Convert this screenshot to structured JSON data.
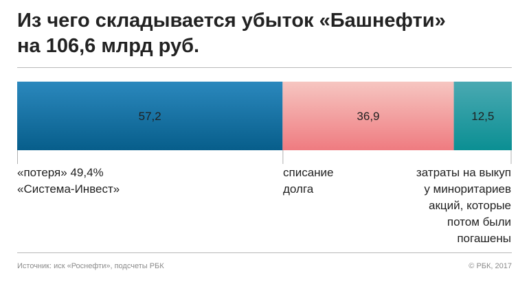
{
  "header": {
    "title_line1": "Из чего складывается убыток «Башнефти»",
    "title_line2": "на 106,6 млрд руб."
  },
  "chart_data": {
    "type": "bar",
    "orientation": "horizontal-stacked",
    "title": "Из чего складывается убыток «Башнефти» на 106,6 млрд руб.",
    "total": 106.6,
    "segments": [
      {
        "value": 57.2,
        "value_label": "57,2",
        "label_lines": [
          "«потеря» 49,4%",
          "«Система-Инвест»"
        ],
        "color_top": "#2b88bd",
        "color_bottom": "#075e8b"
      },
      {
        "value": 36.9,
        "value_label": "36,9",
        "label_lines": [
          "списание",
          "долга"
        ],
        "color_top": "#f6c6c1",
        "color_bottom": "#ef7b80"
      },
      {
        "value": 12.5,
        "value_label": "12,5",
        "label_lines": [
          "затраты на выкуп",
          "у миноритариев",
          "акций, которые",
          "потом были",
          "погашены"
        ],
        "color_top": "#4aa9b2",
        "color_bottom": "#0b8f93"
      }
    ]
  },
  "footer": {
    "source": "Источник: иск «Роснефти», подсчеты РБК",
    "copyright": "© РБК, 2017"
  }
}
